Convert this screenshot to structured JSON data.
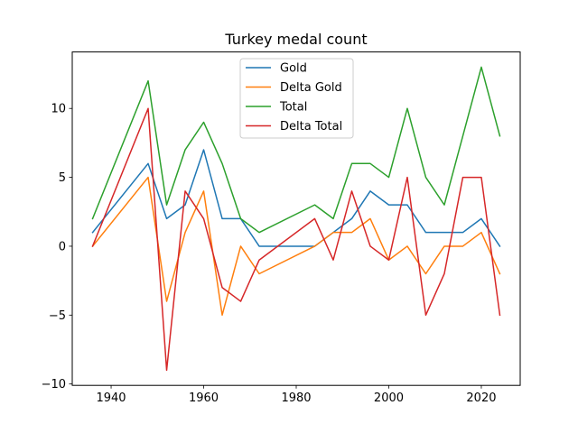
{
  "chart_data": {
    "type": "line",
    "title": "Turkey medal count",
    "xlabel": "",
    "ylabel": "",
    "x": [
      1936,
      1948,
      1952,
      1956,
      1960,
      1964,
      1968,
      1972,
      1984,
      1988,
      1992,
      1996,
      2000,
      2004,
      2008,
      2012,
      2016,
      2020,
      2024
    ],
    "series": [
      {
        "name": "Gold",
        "color": "#1f77b4",
        "values": [
          1,
          6,
          2,
          3,
          7,
          2,
          2,
          0,
          0,
          1,
          2,
          4,
          3,
          3,
          1,
          1,
          1,
          2,
          0
        ]
      },
      {
        "name": "Delta Gold",
        "color": "#ff7f0e",
        "values": [
          0,
          5,
          -4,
          1,
          4,
          -5,
          0,
          -2,
          0,
          1,
          1,
          2,
          -1,
          0,
          -2,
          0,
          0,
          1,
          -2
        ]
      },
      {
        "name": "Total",
        "color": "#2ca02c",
        "values": [
          2,
          12,
          3,
          7,
          9,
          6,
          2,
          1,
          3,
          2,
          6,
          6,
          5,
          10,
          5,
          3,
          8,
          13,
          8
        ]
      },
      {
        "name": "Delta Total",
        "color": "#d62728",
        "values": [
          0,
          10,
          -9,
          4,
          2,
          -3,
          -4,
          -1,
          2,
          -1,
          4,
          0,
          -1,
          5,
          -5,
          -2,
          5,
          5,
          -5
        ]
      }
    ],
    "xlim": [
      1931.6,
      2028.4
    ],
    "ylim": [
      -10.1,
      14.1
    ],
    "xticks": [
      1940,
      1960,
      1980,
      2000,
      2020
    ],
    "yticks": [
      -10,
      -5,
      0,
      5,
      10
    ],
    "grid": false,
    "legend_position": "top-center"
  }
}
